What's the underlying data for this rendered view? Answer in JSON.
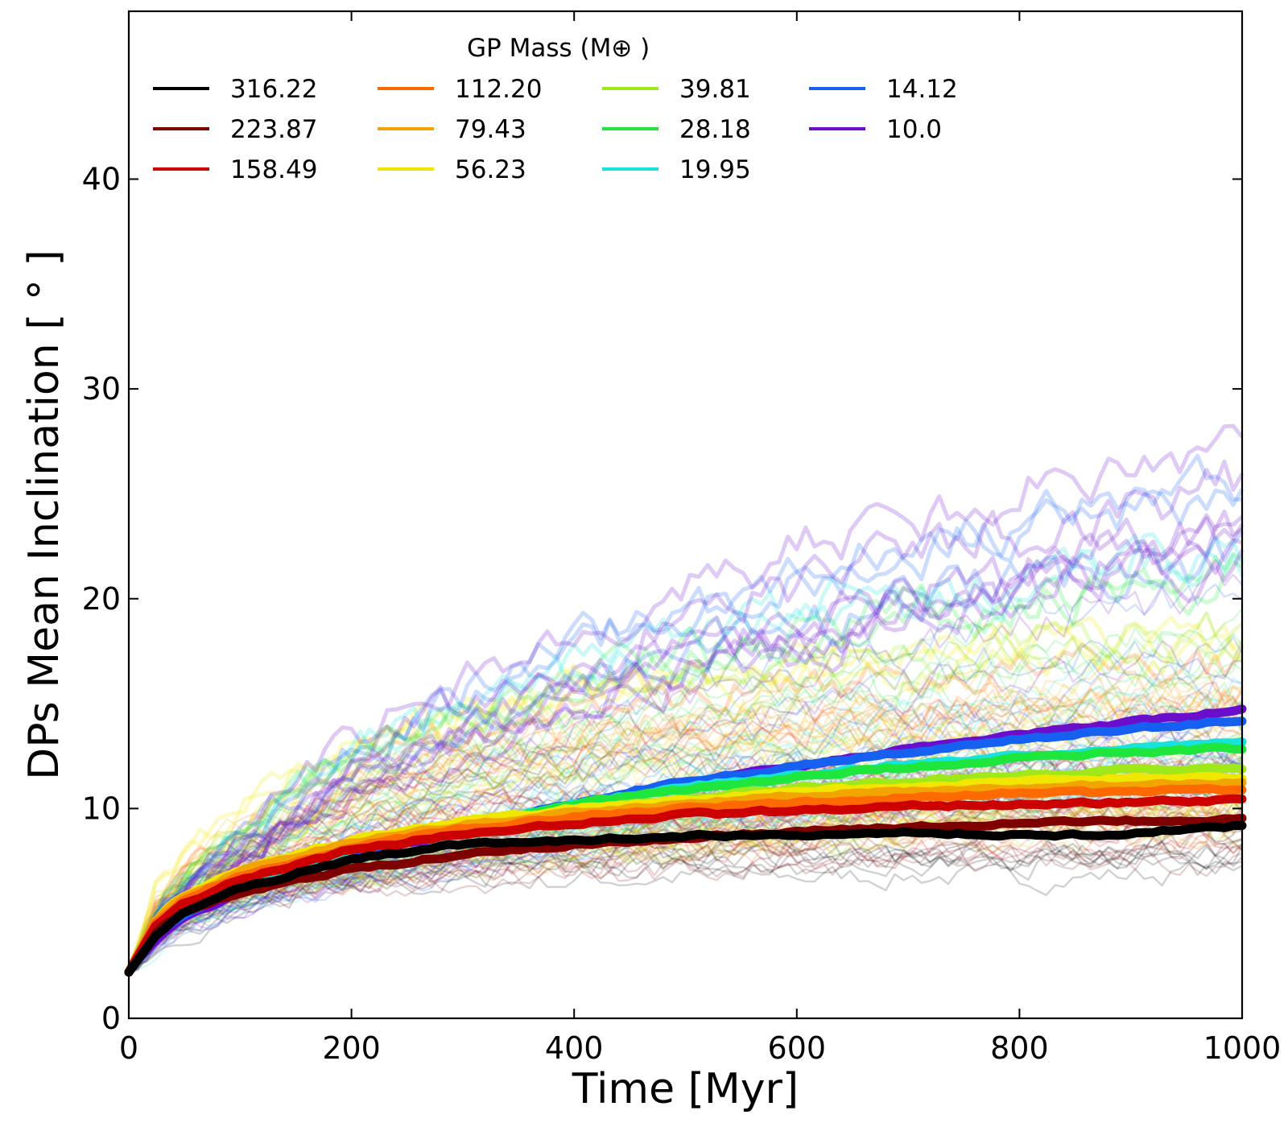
{
  "chart_data": {
    "type": "line",
    "title": "",
    "xlabel": "Time [Myr]",
    "ylabel": "DPs Mean Inclination [ ° ]",
    "xlim": [
      0,
      1000
    ],
    "ylim": [
      0,
      48
    ],
    "xticks": [
      0,
      200,
      400,
      600,
      800,
      1000
    ],
    "yticks": [
      0,
      10,
      20,
      30,
      40
    ],
    "grid": false,
    "legend": {
      "title": "GP Mass (M⊕ )",
      "placement": "top-left",
      "columns": 4
    },
    "x": [
      0,
      25,
      50,
      100,
      200,
      300,
      400,
      500,
      600,
      700,
      800,
      900,
      1000
    ],
    "series": [
      {
        "name": "316.22",
        "color": "#000000",
        "values": [
          2.2,
          4.0,
          5.0,
          6.2,
          7.6,
          8.3,
          8.5,
          8.7,
          8.7,
          8.8,
          8.7,
          8.8,
          9.2
        ]
      },
      {
        "name": "223.87",
        "color": "#7f0000",
        "values": [
          2.2,
          4.2,
          5.1,
          6.0,
          7.1,
          7.8,
          8.3,
          8.6,
          8.9,
          9.1,
          9.3,
          9.4,
          9.5
        ]
      },
      {
        "name": "158.49",
        "color": "#cc0000",
        "values": [
          2.2,
          4.5,
          5.5,
          6.6,
          8.0,
          8.8,
          9.3,
          9.7,
          9.9,
          10.1,
          10.2,
          10.3,
          10.4
        ]
      },
      {
        "name": "112.20",
        "color": "#ff6a00",
        "values": [
          2.2,
          4.6,
          5.7,
          6.8,
          8.2,
          9.0,
          9.6,
          10.0,
          10.3,
          10.5,
          10.7,
          10.8,
          10.9
        ]
      },
      {
        "name": "79.43",
        "color": "#f2a400",
        "values": [
          2.2,
          4.7,
          5.8,
          7.0,
          8.4,
          9.2,
          9.8,
          10.2,
          10.6,
          10.8,
          11.0,
          11.1,
          11.2
        ]
      },
      {
        "name": "56.23",
        "color": "#f0e600",
        "values": [
          2.2,
          4.8,
          5.9,
          7.1,
          8.5,
          9.4,
          10.0,
          10.4,
          10.8,
          11.0,
          11.3,
          11.4,
          11.5
        ]
      },
      {
        "name": "39.81",
        "color": "#9fe81a",
        "values": [
          2.2,
          4.4,
          5.5,
          6.7,
          8.2,
          9.2,
          9.9,
          10.5,
          11.0,
          11.3,
          11.6,
          11.8,
          11.9
        ]
      },
      {
        "name": "28.18",
        "color": "#1fe63c",
        "values": [
          2.2,
          4.3,
          5.4,
          6.6,
          8.2,
          9.3,
          10.2,
          10.9,
          11.5,
          12.0,
          12.4,
          12.7,
          12.9
        ]
      },
      {
        "name": "19.95",
        "color": "#17e3dc",
        "values": [
          2.2,
          4.2,
          5.3,
          6.5,
          8.0,
          9.2,
          10.2,
          11.0,
          11.6,
          12.1,
          12.5,
          12.9,
          13.2
        ]
      },
      {
        "name": "14.12",
        "color": "#1560f0",
        "values": [
          2.2,
          4.0,
          5.0,
          6.2,
          7.8,
          9.1,
          10.3,
          11.3,
          12.0,
          12.7,
          13.3,
          13.8,
          14.2
        ]
      },
      {
        "name": "10.0",
        "color": "#6a0dcc",
        "values": [
          2.2,
          3.8,
          4.8,
          6.0,
          7.7,
          9.0,
          10.2,
          11.2,
          12.0,
          12.8,
          13.5,
          14.1,
          14.7
        ]
      }
    ],
    "individual_runs": "many faint translucent per-run curves in each series colour spread between roughly 5 and 27 degrees"
  }
}
